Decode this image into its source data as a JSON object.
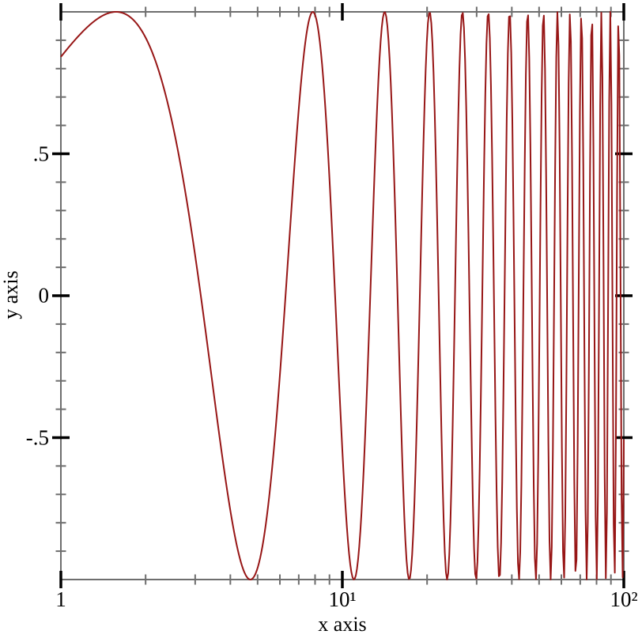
{
  "chart_data": {
    "type": "line",
    "title": "",
    "function": "sin(x)",
    "series": [
      {
        "name": "sin(x)",
        "color": "#971616"
      }
    ],
    "x_scale": "log10",
    "x_range": [
      1,
      100
    ],
    "y_range": [
      -1,
      1
    ],
    "xlabel": "x axis",
    "ylabel": "y axis",
    "x_major_ticks": [
      {
        "value": 1,
        "label": "1"
      },
      {
        "value": 10,
        "label": "10¹"
      },
      {
        "value": 100,
        "label": "10²"
      }
    ],
    "x_minor_ticks": [
      2,
      3,
      4,
      5,
      6,
      7,
      8,
      9,
      20,
      30,
      40,
      50,
      60,
      70,
      80,
      90
    ],
    "y_major_ticks": [
      {
        "value": 0.5,
        "label": ".5"
      },
      {
        "value": 0,
        "label": "0"
      },
      {
        "value": -0.5,
        "label": "-.5"
      }
    ],
    "y_minor_ticks": [
      0.9,
      0.8,
      0.7,
      0.6,
      0.4,
      0.3,
      0.2,
      0.1,
      -0.1,
      -0.2,
      -0.3,
      -0.4,
      -0.6,
      -0.7,
      -0.8,
      -0.9
    ],
    "grid": false,
    "legend": "none",
    "samples": 500,
    "line_width": 2,
    "axis_color": "#6e6e6e",
    "major_tick_color": "#000000",
    "background": "#ffffff"
  }
}
